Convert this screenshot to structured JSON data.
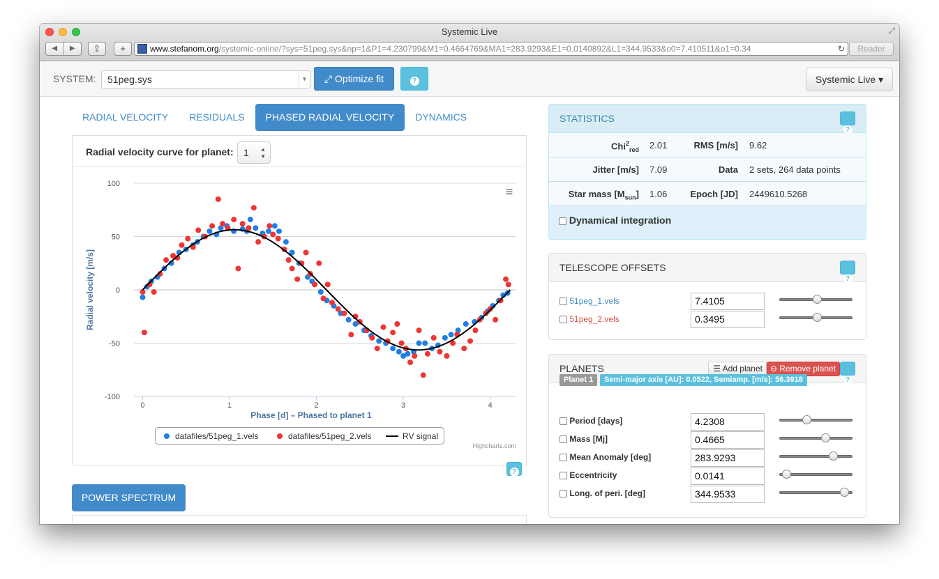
{
  "window": {
    "title": "Systemic Live"
  },
  "browser": {
    "domain": "www.stefanom.org",
    "path": "/systemic-online/?sys=51peg.sys&np=1&P1=4.230799&M1=0.4664769&MA1=283.9293&E1=0.0140892&L1=344.9533&o0=7.410511&o1=0.34",
    "reader_label": "Reader",
    "back_icon": "◀",
    "forward_icon": "▶",
    "share_icon": "⇪",
    "newtab_icon": "+",
    "reload_icon": "↻"
  },
  "toolbar": {
    "system_label": "SYSTEM:",
    "system_value": "51peg.sys",
    "optimize_label": "Optimize fit",
    "help_icon": "?",
    "menu_label": "Systemic Live ▾"
  },
  "tabs": [
    {
      "label": "RADIAL VELOCITY",
      "active": false
    },
    {
      "label": "RESIDUALS",
      "active": false
    },
    {
      "label": "PHASED RADIAL VELOCITY",
      "active": true
    },
    {
      "label": "DYNAMICS",
      "active": false
    }
  ],
  "chart_panel": {
    "curve_label": "Radial velocity curve for planet:",
    "planet_value": "1",
    "credit": "Highcharts.com",
    "menu_icon": "≡"
  },
  "chart_data": {
    "type": "scatter",
    "xlabel": "Phase [d] – Phased to planet 1",
    "ylabel": "Radial velocity [m/s]",
    "xlim": [
      -0.1,
      4.3
    ],
    "ylim": [
      -100,
      100
    ],
    "x_ticks": [
      0,
      1,
      2,
      3,
      4
    ],
    "y_ticks": [
      -100,
      -50,
      0,
      50,
      100
    ],
    "grid": true,
    "legend_position": "bottom-center",
    "series": [
      {
        "name": "datafiles/51peg_1.vels",
        "color": "#1f7fe6",
        "marker": "circle",
        "points": [
          [
            0.0,
            -7
          ],
          [
            0.05,
            3
          ],
          [
            0.1,
            8
          ],
          [
            0.17,
            12
          ],
          [
            0.25,
            20
          ],
          [
            0.33,
            25
          ],
          [
            0.42,
            35
          ],
          [
            0.5,
            38
          ],
          [
            0.58,
            42
          ],
          [
            0.63,
            45
          ],
          [
            0.7,
            50
          ],
          [
            0.77,
            55
          ],
          [
            0.85,
            52
          ],
          [
            0.9,
            58
          ],
          [
            0.97,
            60
          ],
          [
            1.05,
            55
          ],
          [
            1.15,
            57
          ],
          [
            1.2,
            55
          ],
          [
            1.24,
            66
          ],
          [
            1.3,
            58
          ],
          [
            1.38,
            53
          ],
          [
            1.45,
            55
          ],
          [
            1.52,
            60
          ],
          [
            1.57,
            55
          ],
          [
            1.65,
            45
          ],
          [
            1.72,
            35
          ],
          [
            1.8,
            25
          ],
          [
            1.9,
            12
          ],
          [
            1.95,
            8
          ],
          [
            2.05,
            -2
          ],
          [
            2.12,
            -10
          ],
          [
            2.2,
            -15
          ],
          [
            2.28,
            -22
          ],
          [
            2.37,
            -28
          ],
          [
            2.45,
            -32
          ],
          [
            2.55,
            -38
          ],
          [
            2.63,
            -43
          ],
          [
            2.72,
            -48
          ],
          [
            2.8,
            -50
          ],
          [
            2.88,
            -55
          ],
          [
            2.95,
            -58
          ],
          [
            3.0,
            -62
          ],
          [
            3.05,
            -60
          ],
          [
            3.12,
            -58
          ],
          [
            3.18,
            -50
          ],
          [
            3.25,
            -50
          ],
          [
            3.33,
            -55
          ],
          [
            3.4,
            -52
          ],
          [
            3.48,
            -45
          ],
          [
            3.55,
            -42
          ],
          [
            3.63,
            -38
          ],
          [
            3.72,
            -32
          ],
          [
            3.82,
            -30
          ],
          [
            3.9,
            -26
          ],
          [
            3.97,
            -20
          ],
          [
            4.03,
            -15
          ],
          [
            4.1,
            -10
          ],
          [
            4.15,
            -5
          ],
          [
            4.2,
            -3
          ]
        ]
      },
      {
        "name": "datafiles/51peg_2.vels",
        "color": "#ee3535",
        "marker": "circle",
        "points": [
          [
            0.0,
            -2
          ],
          [
            0.02,
            -40
          ],
          [
            0.08,
            5
          ],
          [
            0.13,
            -2
          ],
          [
            0.2,
            15
          ],
          [
            0.27,
            28
          ],
          [
            0.35,
            32
          ],
          [
            0.4,
            30
          ],
          [
            0.45,
            42
          ],
          [
            0.52,
            48
          ],
          [
            0.58,
            40
          ],
          [
            0.64,
            56
          ],
          [
            0.72,
            50
          ],
          [
            0.8,
            60
          ],
          [
            0.87,
            85
          ],
          [
            0.92,
            62
          ],
          [
            0.98,
            58
          ],
          [
            1.05,
            66
          ],
          [
            1.1,
            20
          ],
          [
            1.15,
            62
          ],
          [
            1.22,
            58
          ],
          [
            1.28,
            77
          ],
          [
            1.33,
            45
          ],
          [
            1.4,
            50
          ],
          [
            1.46,
            60
          ],
          [
            1.5,
            52
          ],
          [
            1.56,
            48
          ],
          [
            1.63,
            38
          ],
          [
            1.68,
            28
          ],
          [
            1.72,
            20
          ],
          [
            1.78,
            10
          ],
          [
            1.83,
            25
          ],
          [
            1.88,
            35
          ],
          [
            1.93,
            15
          ],
          [
            1.98,
            5
          ],
          [
            2.03,
            25
          ],
          [
            2.08,
            -8
          ],
          [
            2.13,
            5
          ],
          [
            2.18,
            -12
          ],
          [
            2.25,
            -18
          ],
          [
            2.32,
            -22
          ],
          [
            2.4,
            -42
          ],
          [
            2.45,
            -25
          ],
          [
            2.5,
            -30
          ],
          [
            2.58,
            -38
          ],
          [
            2.64,
            -45
          ],
          [
            2.7,
            -55
          ],
          [
            2.77,
            -35
          ],
          [
            2.82,
            -48
          ],
          [
            2.88,
            -40
          ],
          [
            2.93,
            -32
          ],
          [
            2.98,
            -50
          ],
          [
            3.03,
            -55
          ],
          [
            3.08,
            -68
          ],
          [
            3.13,
            -62
          ],
          [
            3.18,
            -38
          ],
          [
            3.23,
            -80
          ],
          [
            3.28,
            -60
          ],
          [
            3.35,
            -45
          ],
          [
            3.42,
            -58
          ],
          [
            3.5,
            -62
          ],
          [
            3.57,
            -50
          ],
          [
            3.62,
            -42
          ],
          [
            3.7,
            -55
          ],
          [
            3.77,
            -48
          ],
          [
            3.83,
            -38
          ],
          [
            3.88,
            -28
          ],
          [
            3.95,
            -22
          ],
          [
            4.0,
            -18
          ],
          [
            4.06,
            -28
          ],
          [
            4.12,
            -10
          ],
          [
            4.18,
            10
          ],
          [
            4.21,
            5
          ]
        ]
      },
      {
        "name": "RV signal",
        "color": "#000000",
        "marker": "line",
        "amplitude": 56.39,
        "period": 4.2308,
        "phase_offset": 0
      }
    ]
  },
  "power_spectrum_label": "POWER SPECTRUM",
  "statistics": {
    "title": "STATISTICS",
    "rows": [
      {
        "k1": "Chi²red",
        "v1": "2.01",
        "k2": "RMS [m/s]",
        "v2": "9.62"
      },
      {
        "k1": "Jitter [m/s]",
        "v1": "7.09",
        "k2": "Data",
        "v2": "2 sets, 264 data points"
      },
      {
        "k1": "Star mass [Msun]",
        "v1": "1.06",
        "k2": "Epoch [JD]",
        "v2": "2449610.5268"
      }
    ],
    "dynamical_label": "Dynamical integration"
  },
  "offsets": {
    "title": "TELESCOPE OFFSETS",
    "items": [
      {
        "label": "51peg_1.vels",
        "value": "7.4105",
        "slider": 0.5,
        "color": "#428bca"
      },
      {
        "label": "51peg_2.vels",
        "value": "0.3495",
        "slider": 0.5,
        "color": "#d9534f"
      }
    ]
  },
  "planets": {
    "title": "PLANETS",
    "add_label": "Add planet",
    "remove_label": "Remove planet",
    "planet_badge": "Planet 1",
    "info_badge": "Semi-major axis [AU]: 0.0522, Semiamp. [m/s]: 56.3918",
    "params": [
      {
        "label": "Period [days]",
        "value": "4.2308",
        "slider": 0.35
      },
      {
        "label": "Mass [Mj]",
        "value": "0.4665",
        "slider": 0.63
      },
      {
        "label": "Mean Anomaly [deg]",
        "value": "283.9293",
        "slider": 0.75
      },
      {
        "label": "Eccentricity",
        "value": "0.0141",
        "slider": 0.04
      },
      {
        "label": "Long. of peri. [deg]",
        "value": "344.9533",
        "slider": 0.92
      }
    ]
  }
}
